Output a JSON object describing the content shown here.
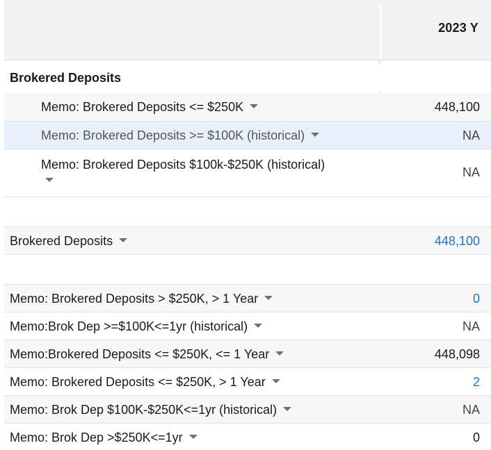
{
  "header": {
    "period": "2023 Y"
  },
  "section": {
    "title": "Brokered Deposits"
  },
  "rows": [
    {
      "label": "Memo: Brokered Deposits <= $250K",
      "value": "448,100"
    },
    {
      "label": "Memo: Brokered Deposits >= $100K (historical)",
      "value": "NA"
    },
    {
      "label": "Memo: Brokered Deposits $100k-$250K (historical)",
      "value": "NA"
    },
    {
      "label": "Brokered Deposits",
      "value": "448,100"
    },
    {
      "label": "Memo: Brokered Deposits > $250K, > 1 Year",
      "value": "0"
    },
    {
      "label": "Memo:Brok Dep >=$100K<=1yr (historical)",
      "value": "NA"
    },
    {
      "label": "Memo:Brokered Deposits <= $250K, <= 1 Year",
      "value": "448,098"
    },
    {
      "label": "Memo: Brokered Deposits <= $250K, > 1 Year",
      "value": "2"
    },
    {
      "label": "Memo: Brok Dep $100K-$250K<=1yr (historical)",
      "value": "NA"
    },
    {
      "label": "Memo: Brok Dep >$250K<=1yr",
      "value": "0"
    }
  ],
  "icons": {
    "caret": "chevron-down-icon"
  },
  "colors": {
    "link_value": "#1f73c2",
    "highlight_row": "#e7f0fb",
    "header_bg": "#f2f2f2"
  }
}
